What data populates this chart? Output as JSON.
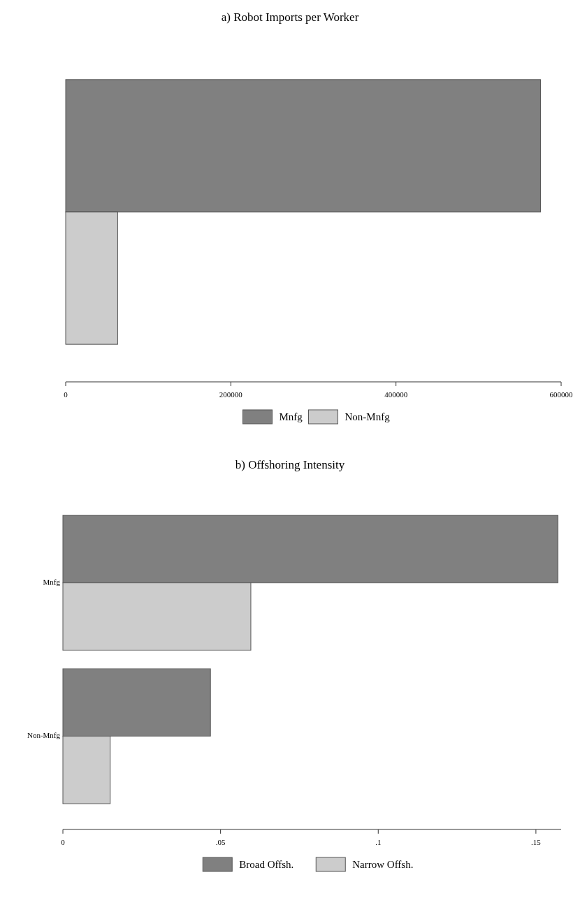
{
  "chart_data": [
    {
      "type": "bar",
      "orientation": "horizontal",
      "title": "a) Robot Imports per Worker",
      "categories": [
        null
      ],
      "series": [
        {
          "name": "Mnfg",
          "color": "#808080",
          "values": [
            575000
          ]
        },
        {
          "name": "Non-Mnfg",
          "color": "#cccccc",
          "values": [
            63000
          ]
        }
      ],
      "xlim": [
        0,
        600000
      ],
      "xticks": [
        0,
        200000,
        400000,
        600000
      ],
      "legend": "bottom",
      "grid": false
    },
    {
      "type": "bar",
      "orientation": "horizontal",
      "title": "b) Offshoring Intensity",
      "categories": [
        "Mnfg",
        "Non-Mnfg"
      ],
      "series": [
        {
          "name": "Broad Offsh.",
          "color": "#808080",
          "values": [
            0.157,
            0.0468
          ]
        },
        {
          "name": "Narrow Offsh.",
          "color": "#cccccc",
          "values": [
            0.0596,
            0.015
          ]
        }
      ],
      "xlim": [
        0,
        0.158
      ],
      "xticks": [
        0,
        {
          "value": 0.05,
          "label": ".05"
        },
        {
          "value": 0.1,
          "label": ".1"
        },
        {
          "value": 0.15,
          "label": ".15"
        }
      ],
      "legend": "bottom",
      "grid": false
    }
  ]
}
